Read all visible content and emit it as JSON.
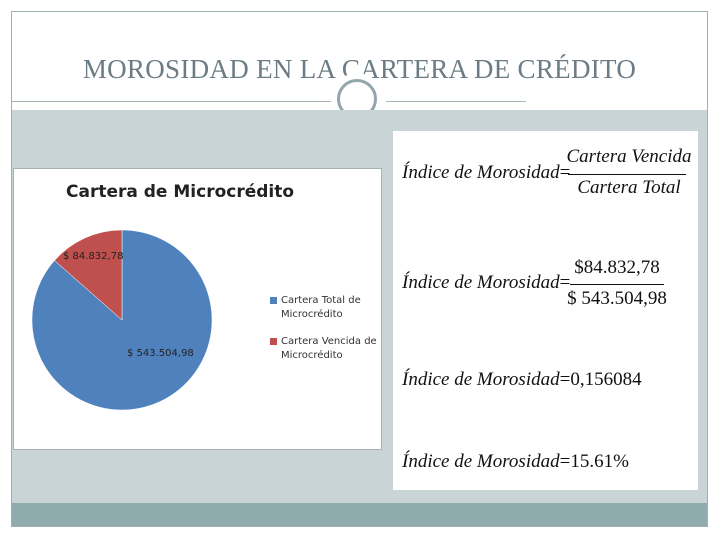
{
  "slide": {
    "title": "MOROSIDAD EN LA CARTERA DE CRÉDITO"
  },
  "chart_data": {
    "type": "pie",
    "title": "Cartera de Microcrédito",
    "categories": [
      "Cartera Total de Microcrédito",
      "Cartera Vencida de Microcrédito"
    ],
    "values": [
      543504.98,
      84832.78
    ],
    "data_labels": [
      "$ 543.504,98",
      "$ 84.832,78"
    ],
    "colors": [
      "#4f81bd",
      "#c0504d"
    ],
    "legend_position": "right",
    "legend": {
      "item1": "Cartera Total de Microcrédito",
      "item2": "Cartera Vencida de Microcrédito"
    }
  },
  "formulas": {
    "label": "Índice de Morosidad",
    "equals": "=",
    "f1_numerator": "Cartera Vencida",
    "f1_denominator": "Cartera Total",
    "f2_numerator": "$84.832,78",
    "f2_denominator": "$ 543.504,98",
    "f3_value": "0,156084",
    "f4_value": "15.61%"
  }
}
